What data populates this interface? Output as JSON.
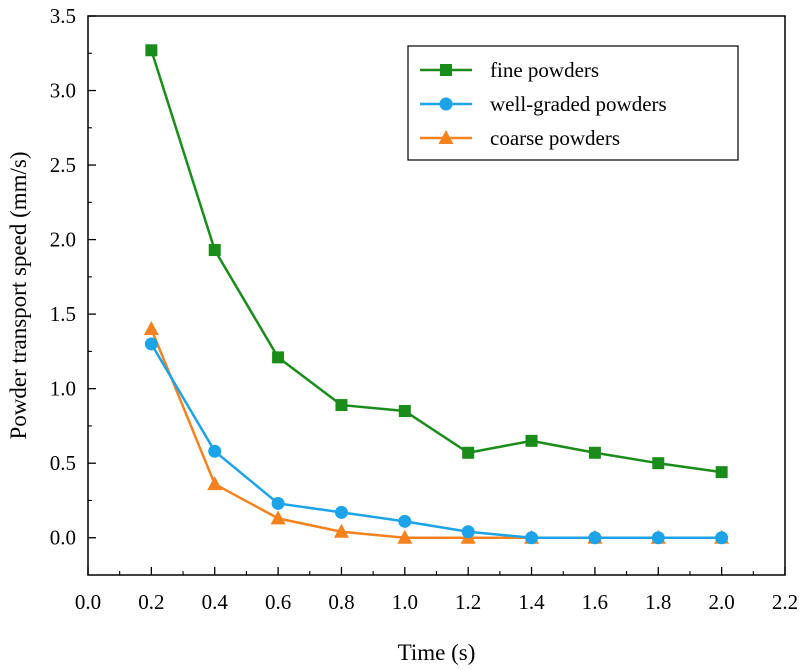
{
  "chart_data": {
    "type": "line",
    "title": "",
    "xlabel": "Time (s)",
    "ylabel": "Powder transport speed (mm/s)",
    "xlim": [
      0.0,
      2.2
    ],
    "ylim": [
      -0.25,
      3.5
    ],
    "xticks": [
      "0.0",
      "0.2",
      "0.4",
      "0.6",
      "0.8",
      "1.0",
      "1.2",
      "1.4",
      "1.6",
      "1.8",
      "2.0",
      "2.2"
    ],
    "yticks": [
      "0.0",
      "0.5",
      "1.0",
      "1.5",
      "2.0",
      "2.5",
      "3.0",
      "3.5"
    ],
    "legend_position": "top-right",
    "x": [
      0.2,
      0.4,
      0.6,
      0.8,
      1.0,
      1.2,
      1.4,
      1.6,
      1.8,
      2.0
    ],
    "series": [
      {
        "name": "fine powders",
        "color": "#1a8c1a",
        "marker": "square",
        "values": [
          3.27,
          1.93,
          1.21,
          0.89,
          0.85,
          0.57,
          0.65,
          0.57,
          0.5,
          0.44
        ]
      },
      {
        "name": "well-graded powders",
        "color": "#1ca3e8",
        "marker": "circle",
        "values": [
          1.3,
          0.58,
          0.23,
          0.17,
          0.11,
          0.04,
          0.0,
          0.0,
          0.0,
          0.0
        ]
      },
      {
        "name": "coarse powders",
        "color": "#f5821f",
        "marker": "triangle",
        "values": [
          1.4,
          0.36,
          0.13,
          0.04,
          0.0,
          0.0,
          0.0,
          0.0,
          0.0,
          0.0
        ]
      }
    ]
  }
}
